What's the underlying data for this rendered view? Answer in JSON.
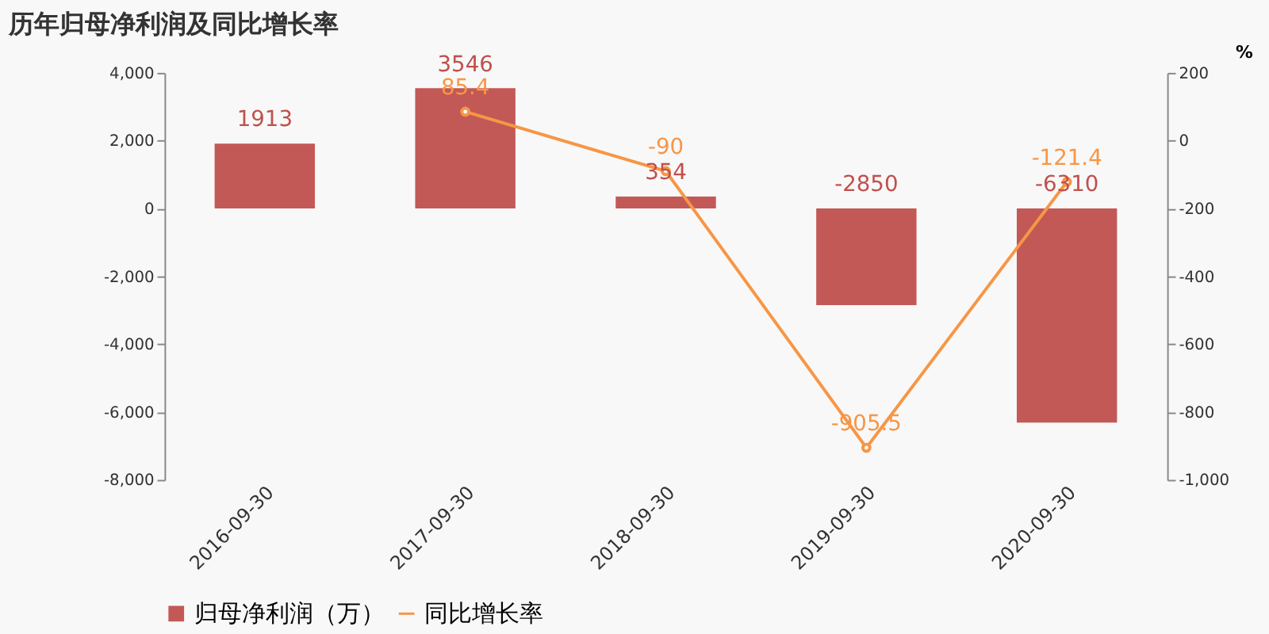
{
  "chart_data": {
    "type": "bar",
    "title": "历年归母净利润及同比增长率",
    "y2label": "%",
    "categories": [
      "2016-09-30",
      "2017-09-30",
      "2018-09-30",
      "2019-09-30",
      "2020-09-30"
    ],
    "series": [
      {
        "name": "归母净利润（万）",
        "color": "#c0504d",
        "values": [
          1913,
          3546,
          354,
          -2850,
          -6310
        ]
      },
      {
        "name": "同比增长率",
        "type": "line",
        "axis": "y2",
        "color": "#f79646",
        "marker": "circle",
        "values": [
          null,
          85.4,
          -90,
          -905.5,
          -121.4
        ]
      }
    ],
    "ylim": [
      -8000,
      4000
    ],
    "yticks": [
      {
        "value": -8000,
        "label": "-8,000"
      },
      {
        "value": -6000,
        "label": "-6,000"
      },
      {
        "value": -4000,
        "label": "-4,000"
      },
      {
        "value": -2000,
        "label": "-2,000"
      },
      0,
      {
        "value": 2000,
        "label": "2,000"
      },
      {
        "value": 4000,
        "label": "4,000"
      }
    ],
    "y2lim": [
      -1000,
      200
    ],
    "y2ticks": [
      {
        "value": -1000,
        "label": "-1,000"
      },
      -800,
      -600,
      -400,
      -200,
      0,
      200
    ],
    "data_labels": true,
    "legend": "bottom",
    "grid": false
  }
}
